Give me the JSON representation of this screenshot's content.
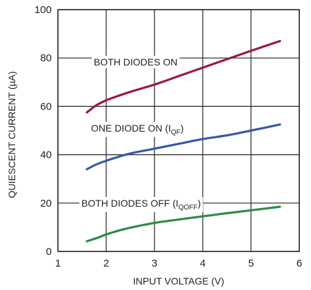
{
  "chart_data": {
    "type": "line",
    "xlabel": "INPUT VOLTAGE (V)",
    "ylabel": "QUIESCENT CURRENT (µA)",
    "xlim": [
      1,
      6
    ],
    "ylim": [
      0,
      100
    ],
    "xticks": [
      1,
      2,
      3,
      4,
      5,
      6
    ],
    "yticks": [
      0,
      20,
      40,
      60,
      80,
      100
    ],
    "grid": true,
    "series": [
      {
        "name": "BOTH DIODES ON",
        "color": "#9b1b3b",
        "x": [
          1.6,
          1.8,
          2.0,
          2.2,
          2.5,
          3.0,
          3.5,
          4.0,
          4.5,
          5.0,
          5.6
        ],
        "y": [
          57.5,
          60.5,
          62.5,
          64.0,
          66.0,
          69.0,
          72.5,
          76.0,
          79.5,
          83.0,
          87.0
        ]
      },
      {
        "name": "ONE DIODE ON (I",
        "name_sub": "QF",
        "name_tail": ")",
        "color": "#3a58a8",
        "x": [
          1.6,
          1.8,
          2.0,
          2.2,
          2.5,
          3.0,
          3.5,
          4.0,
          4.5,
          5.0,
          5.6
        ],
        "y": [
          34.0,
          36.0,
          37.5,
          38.8,
          40.5,
          42.5,
          44.5,
          46.5,
          48.0,
          50.0,
          52.5
        ]
      },
      {
        "name": "BOTH DIODES OFF (I",
        "name_sub": "QOFF",
        "name_tail": ")",
        "color": "#2e8b45",
        "x": [
          1.6,
          1.8,
          2.0,
          2.2,
          2.5,
          3.0,
          3.5,
          4.0,
          4.5,
          5.0,
          5.6
        ],
        "y": [
          4.2,
          5.5,
          7.0,
          8.3,
          9.8,
          11.8,
          13.2,
          14.5,
          15.8,
          17.0,
          18.5
        ]
      }
    ]
  }
}
